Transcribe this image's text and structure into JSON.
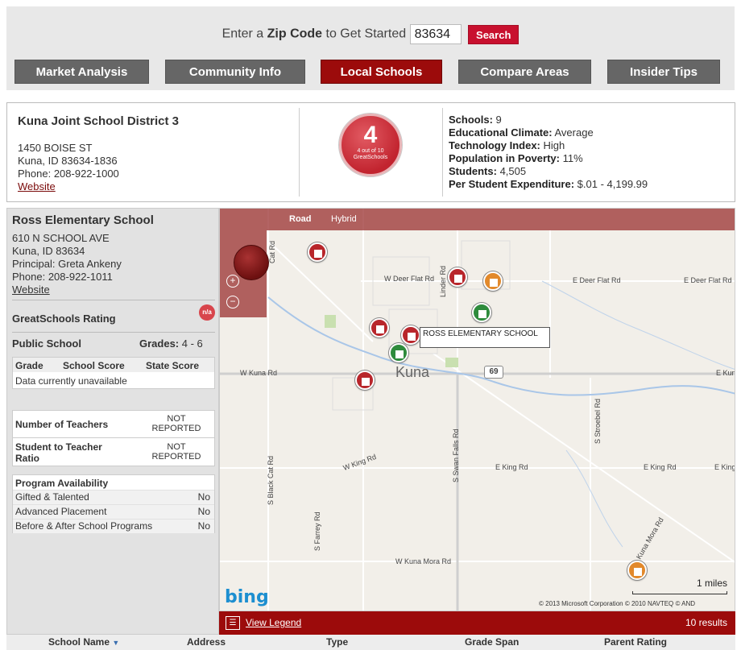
{
  "search": {
    "prompt_prefix": "Enter a",
    "prompt_bold": "Zip Code",
    "prompt_suffix": "to Get Started",
    "zip_value": "83634",
    "button": "Search"
  },
  "tabs": [
    {
      "label": "Market Analysis"
    },
    {
      "label": "Community Info"
    },
    {
      "label": "Local Schools",
      "active": true
    },
    {
      "label": "Compare Areas"
    },
    {
      "label": "Insider Tips"
    }
  ],
  "district": {
    "name": "Kuna Joint School District 3",
    "address1": "1450 BOISE ST",
    "address2": "Kuna, ID 83634-1836",
    "phone": "Phone: 208-922-1000",
    "website": "Website",
    "rating": "4",
    "rating_sub1": "4 out of 10",
    "rating_sub2": "GreatSchools",
    "stats": [
      {
        "label": "Schools:",
        "value": "9"
      },
      {
        "label": "Educational Climate:",
        "value": "Average"
      },
      {
        "label": "Technology Index:",
        "value": "High"
      },
      {
        "label": "Population in Poverty:",
        "value": "11%"
      },
      {
        "label": "Students:",
        "value": "4,505"
      },
      {
        "label": "Per Student Expenditure:",
        "value": "$.01 - 4,199.99"
      }
    ]
  },
  "school": {
    "name": "Ross Elementary School",
    "address1": "610 N SCHOOL AVE",
    "address2": "Kuna, ID 83634",
    "principal": "Principal: Greta Ankeny",
    "phone": "Phone: 208-922-1011",
    "website": "Website",
    "rating_label": "GreatSchools Rating",
    "rating_badge": "n/a",
    "type": "Public School",
    "grades_label": "Grades:",
    "grades": "4 - 6",
    "score_headers": [
      "Grade",
      "School Score",
      "State Score"
    ],
    "score_empty": "Data currently unavailable",
    "teachers_label": "Number of Teachers",
    "teachers_value": "NOT REPORTED",
    "ratio_label": "Student to Teacher Ratio",
    "ratio_value": "NOT REPORTED",
    "program_title": "Program Availability",
    "programs": [
      {
        "name": "Gifted & Talented",
        "value": "No"
      },
      {
        "name": "Advanced Placement",
        "value": "No"
      },
      {
        "name": "Before & After School Programs",
        "value": "No"
      }
    ]
  },
  "map": {
    "view_road": "Road",
    "view_hybrid": "Hybrid",
    "town": "Kuna",
    "tooltip": "ROSS ELEMENTARY SCHOOL",
    "roads": [
      "W Deer Flat Rd",
      "E Deer Flat Rd",
      "E Deer Flat Rd",
      "W Kuna Rd",
      "E Kuna",
      "W King Rd",
      "E King Rd",
      "E King Rd",
      "E King Rd",
      "W Kuna Mora Rd",
      "Linder Rd",
      "S Swan Falls Rd",
      "S Black Cat Rd",
      "S Stroebel Rd",
      "S Farrey Rd",
      "Cat Rd",
      "Kuna Mora Rd",
      "69"
    ],
    "scale": "1 miles",
    "copyright": "© 2013 Microsoft Corporation    © 2010 NAVTEQ    © AND",
    "brand": "bing",
    "legend": "View Legend",
    "results": "10 results"
  },
  "table_headers": [
    "School Name",
    "Address",
    "Type",
    "Grade Span",
    "Parent Rating"
  ]
}
